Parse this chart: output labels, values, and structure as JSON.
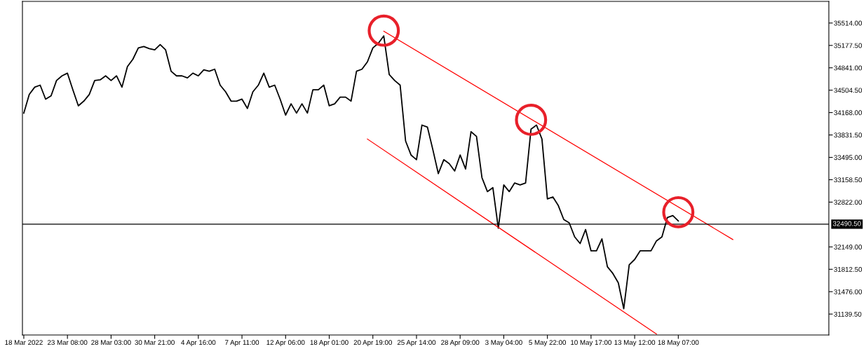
{
  "chart_data": {
    "type": "line",
    "categories": [
      "18 Mar 2022",
      null,
      null,
      null,
      null,
      null,
      null,
      null,
      "23 Mar 08:00",
      null,
      null,
      null,
      null,
      null,
      null,
      null,
      "28 Mar 03:00",
      null,
      null,
      null,
      null,
      null,
      null,
      null,
      "30 Mar 21:00",
      null,
      null,
      null,
      null,
      null,
      null,
      null,
      "4 Apr 16:00",
      null,
      null,
      null,
      null,
      null,
      null,
      null,
      "7 Apr 11:00",
      null,
      null,
      null,
      null,
      null,
      null,
      null,
      "12 Apr 06:00",
      null,
      null,
      null,
      null,
      null,
      null,
      null,
      "18 Apr 01:00",
      null,
      null,
      null,
      null,
      null,
      null,
      null,
      "20 Apr 19:00",
      null,
      null,
      null,
      null,
      null,
      null,
      null,
      "25 Apr 14:00",
      null,
      null,
      null,
      null,
      null,
      null,
      null,
      "28 Apr 09:00",
      null,
      null,
      null,
      null,
      null,
      null,
      null,
      "3 May 04:00",
      null,
      null,
      null,
      null,
      null,
      null,
      null,
      "5 May 22:00",
      null,
      null,
      null,
      null,
      null,
      null,
      null,
      "10 May 17:00",
      null,
      null,
      null,
      null,
      null,
      null,
      null,
      "13 May 12:00",
      null,
      null,
      null,
      null,
      null,
      null,
      null,
      "18 May 07:00",
      null,
      null,
      null,
      null,
      null,
      null,
      null,
      null,
      null,
      null,
      null,
      null,
      null,
      null,
      null,
      null,
      null,
      null,
      null,
      null,
      null,
      null,
      null,
      null,
      null,
      null,
      null
    ],
    "series": [
      {
        "color": "#000000",
        "values": [
          34160,
          34440,
          34550,
          34580,
          34370,
          34420,
          34650,
          34720,
          34760,
          34510,
          34270,
          34340,
          34440,
          34650,
          34660,
          34720,
          34650,
          34720,
          34550,
          34860,
          34970,
          35140,
          35160,
          35130,
          35110,
          35190,
          35110,
          34790,
          34720,
          34720,
          34690,
          34760,
          34720,
          34810,
          34790,
          34820,
          34580,
          34480,
          34340,
          34340,
          34370,
          34230,
          34480,
          34580,
          34760,
          34550,
          34580,
          34370,
          34130,
          34300,
          34160,
          34300,
          34160,
          34510,
          34510,
          34580,
          34270,
          34300,
          34400,
          34400,
          34340,
          34790,
          34820,
          34930,
          35140,
          35210,
          35320,
          34740,
          34650,
          34580,
          33740,
          33530,
          33460,
          33980,
          33950,
          33610,
          33250,
          33460,
          33400,
          33290,
          33530,
          33320,
          33880,
          33810,
          33190,
          32980,
          33040,
          32430,
          33080,
          32980,
          33110,
          33080,
          33110,
          33920,
          33980,
          33770,
          32870,
          32900,
          32770,
          32560,
          32510,
          32300,
          32200,
          32410,
          32090,
          32090,
          32270,
          31850,
          31750,
          31610,
          31220,
          31880,
          31960,
          32090,
          32090,
          32090,
          32240,
          32300,
          32590,
          32620,
          32540,
          null,
          null,
          null,
          null,
          null,
          null,
          null,
          null,
          null,
          null,
          null,
          null,
          null,
          null,
          null,
          null,
          null,
          null,
          null,
          null,
          null,
          null,
          null,
          null,
          null,
          null,
          null
        ]
      },
      {
        "type": "line",
        "color": "#ff0000",
        "values": [
          null,
          null,
          null,
          null,
          null,
          null,
          null,
          null,
          null,
          null,
          null,
          null,
          null,
          null,
          null,
          null,
          null,
          null,
          null,
          null,
          null,
          null,
          null,
          null,
          null,
          null,
          null,
          null,
          null,
          null,
          null,
          null,
          null,
          null,
          null,
          null,
          null,
          null,
          null,
          null,
          null,
          null,
          null,
          null,
          null,
          null,
          null,
          null,
          null,
          null,
          null,
          null,
          null,
          null,
          null,
          null,
          null,
          null,
          null,
          null,
          null,
          null,
          null,
          null,
          null,
          null,
          35390,
          null,
          null,
          null,
          null,
          null,
          null,
          null,
          null,
          null,
          null,
          null,
          null,
          null,
          null,
          null,
          null,
          null,
          null,
          null,
          null,
          null,
          null,
          null,
          null,
          null,
          null,
          null,
          null,
          null,
          null,
          null,
          null,
          null,
          null,
          null,
          null,
          null,
          null,
          null,
          null,
          null,
          null,
          null,
          null,
          null,
          null,
          null,
          null,
          null,
          null,
          null,
          null,
          null,
          null,
          null,
          null,
          null,
          null,
          null,
          null,
          null,
          null,
          null,
          32260,
          null,
          null,
          null,
          null,
          null,
          null,
          null,
          null,
          null,
          null,
          null,
          null,
          null,
          null,
          null,
          null,
          null
        ]
      },
      {
        "type": "line",
        "color": "#ff0000",
        "values": [
          null,
          null,
          null,
          null,
          null,
          null,
          null,
          null,
          null,
          null,
          null,
          null,
          null,
          null,
          null,
          null,
          null,
          null,
          null,
          null,
          null,
          null,
          null,
          null,
          null,
          null,
          null,
          null,
          null,
          null,
          null,
          null,
          null,
          null,
          null,
          null,
          null,
          null,
          null,
          null,
          null,
          null,
          null,
          null,
          null,
          null,
          null,
          null,
          null,
          null,
          null,
          null,
          null,
          null,
          null,
          null,
          null,
          null,
          null,
          null,
          null,
          null,
          null,
          33770,
          null,
          null,
          null,
          null,
          null,
          null,
          null,
          null,
          null,
          null,
          null,
          null,
          null,
          null,
          null,
          null,
          null,
          null,
          null,
          null,
          null,
          null,
          null,
          null,
          null,
          null,
          null,
          null,
          null,
          null,
          null,
          null,
          null,
          null,
          null,
          null,
          null,
          null,
          null,
          null,
          null,
          null,
          null,
          null,
          null,
          null,
          null,
          null,
          null,
          null,
          null,
          null,
          30840,
          null,
          null,
          null,
          null,
          null,
          null,
          null,
          null,
          null,
          null,
          null,
          null,
          null,
          null,
          null,
          null,
          null,
          null,
          null,
          null,
          null,
          null,
          null,
          null,
          null,
          null,
          null,
          null,
          null,
          null,
          null
        ]
      },
      {
        "type": "scatter",
        "color": "#e8202a",
        "marker": "circle",
        "values": [
          null,
          null,
          null,
          null,
          null,
          null,
          null,
          null,
          null,
          null,
          null,
          null,
          null,
          null,
          null,
          null,
          null,
          null,
          null,
          null,
          null,
          null,
          null,
          null,
          null,
          null,
          null,
          null,
          null,
          null,
          null,
          null,
          null,
          null,
          null,
          null,
          null,
          null,
          null,
          null,
          null,
          null,
          null,
          null,
          null,
          null,
          null,
          null,
          null,
          null,
          null,
          null,
          null,
          null,
          null,
          null,
          null,
          null,
          null,
          null,
          null,
          null,
          null,
          null,
          null,
          null,
          35400,
          null,
          null,
          null,
          null,
          null,
          null,
          null,
          null,
          null,
          null,
          null,
          null,
          null,
          null,
          null,
          null,
          null,
          null,
          null,
          null,
          null,
          null,
          null,
          null,
          null,
          null,
          34060,
          null,
          null,
          null,
          null,
          null,
          null,
          null,
          null,
          null,
          null,
          null,
          null,
          null,
          null,
          null,
          null,
          null,
          null,
          null,
          null,
          null,
          null,
          null,
          null,
          null,
          null,
          32670,
          null,
          null,
          null,
          null,
          null,
          null,
          null,
          null,
          null,
          null,
          null,
          null,
          null,
          null,
          null,
          null,
          null,
          null,
          null,
          null,
          null,
          null,
          null,
          null,
          null,
          null,
          null
        ]
      }
    ],
    "ylim": [
      30825,
      35839
    ],
    "yticks": [
      {
        "value": 35514,
        "label": "35514.00"
      },
      {
        "value": 35177.5,
        "label": "35177.50"
      },
      {
        "value": 34841,
        "label": "34841.00"
      },
      {
        "value": 34504.5,
        "label": "34504.50"
      },
      {
        "value": 34168,
        "label": "34168.00"
      },
      {
        "value": 33831.5,
        "label": "33831.50"
      },
      {
        "value": 33495,
        "label": "33495.00"
      },
      {
        "value": 33158.5,
        "label": "33158.50"
      },
      {
        "value": 32822,
        "label": "32822.00"
      },
      {
        "value": 32149,
        "label": "32149.00"
      },
      {
        "value": 31812.5,
        "label": "31812.50"
      },
      {
        "value": 31476,
        "label": "31476.00"
      },
      {
        "value": 31139.5,
        "label": "31139.50"
      }
    ],
    "ref_lines": [
      {
        "axis": "y",
        "value": 32490.5,
        "label": "32490.50",
        "color": "#000000"
      }
    ],
    "grid": false,
    "legend": false
  }
}
